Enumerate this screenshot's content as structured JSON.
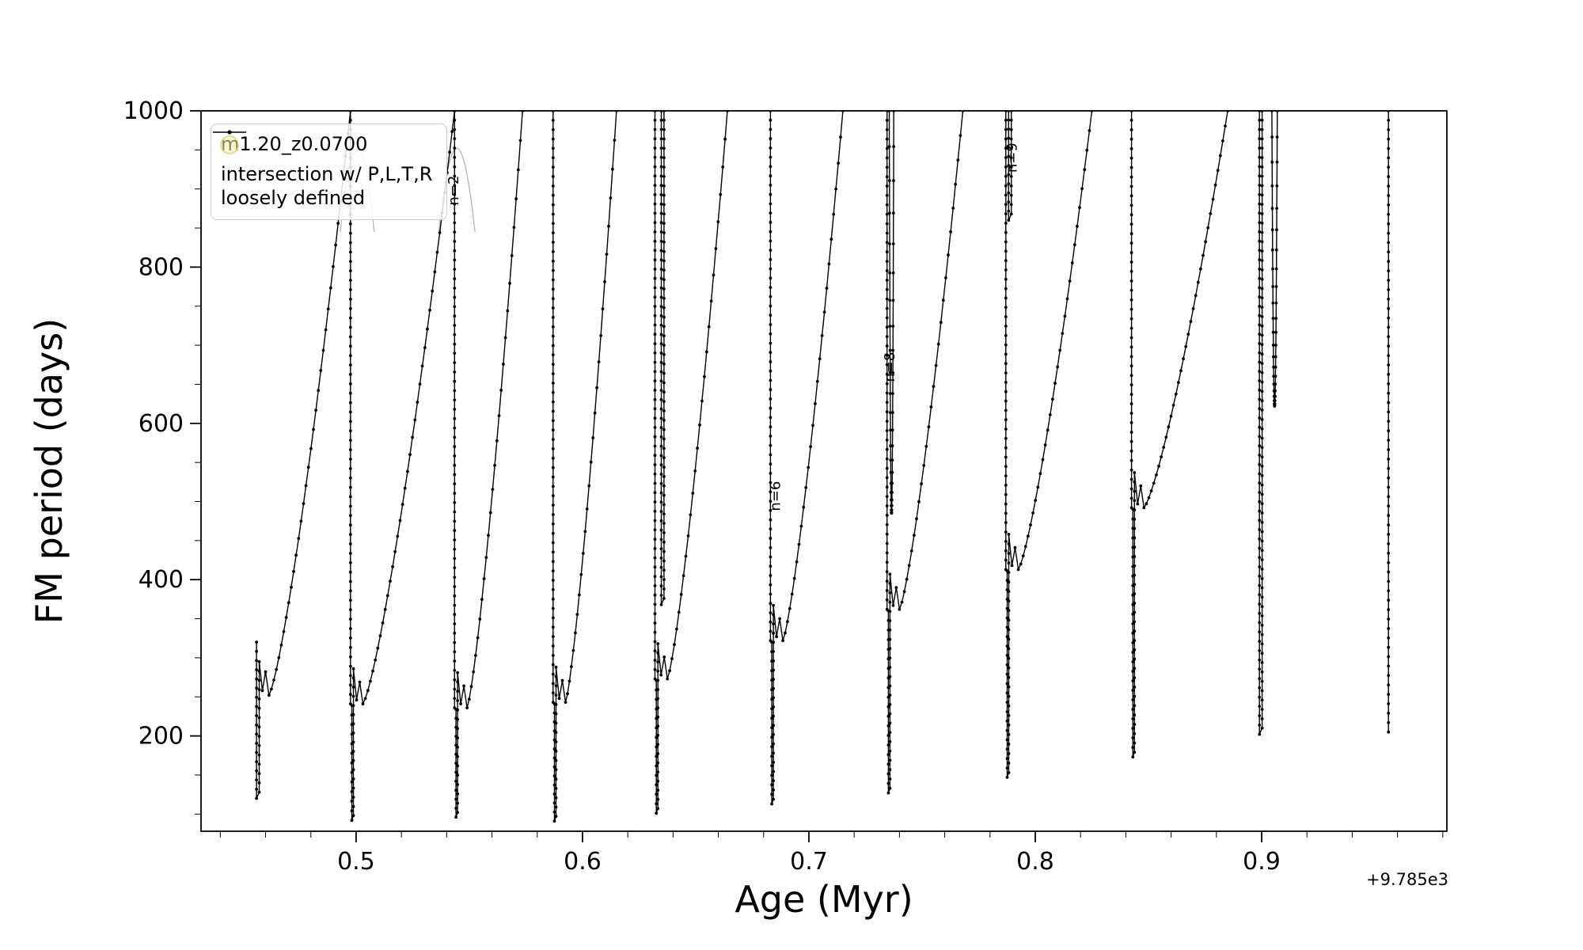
{
  "figure": {
    "background": "#ffffff"
  },
  "chart_data": {
    "type": "line",
    "title": "",
    "xlabel": "Age (Myr)",
    "ylabel": "FM period (days)",
    "x_offset_label": "+9.785e3",
    "xlim": [
      0.4315,
      0.9818
    ],
    "ylim": [
      78,
      1000
    ],
    "xticks": [
      0.5,
      0.6,
      0.7,
      0.8,
      0.9
    ],
    "xtick_labels": [
      "0.5",
      "0.6",
      "0.7",
      "0.8",
      "0.9"
    ],
    "xtick_minor_step": 0.02,
    "yticks": [
      200,
      400,
      600,
      800,
      1000
    ],
    "ytick_minor_step": 50,
    "grid": false,
    "legend": {
      "position": "upper-left",
      "entries": [
        {
          "label": "m1.20_z0.0700",
          "marker": "line-dot",
          "color": "#000000"
        },
        {
          "label_line1": "intersection w/ P,L,T,R",
          "label_line2": "loosely defined",
          "marker": "circle",
          "color": "#f9f3a6",
          "edge_color": "#d9d28e"
        }
      ]
    },
    "series": [
      {
        "name": "m1.20_z0.0700",
        "color": "#000000",
        "marker": "dot",
        "events": [
          {
            "kind": "cluster",
            "x": 0.456,
            "from": 320,
            "deep": 120,
            "bounce": 252,
            "ascend_to": 0.4975
          },
          {
            "kind": "bounce",
            "x": 0.4975,
            "deep": 92,
            "bounce": 241,
            "ascend_to": 0.5435
          },
          {
            "kind": "bounce",
            "x": 0.5435,
            "deep": 96,
            "bounce": 236,
            "ascend_to": 0.5735
          },
          {
            "kind": "bounce",
            "x": 0.587,
            "deep": 91,
            "bounce": 243,
            "ascend_to": 0.615
          },
          {
            "kind": "bounce",
            "x": 0.632,
            "deep": 101,
            "bounce": 273,
            "ascend_to": 0.664
          },
          {
            "kind": "spike_return",
            "x": 0.6348,
            "deep": 368
          },
          {
            "kind": "bounce",
            "x": 0.683,
            "deep": 113,
            "bounce": 322,
            "ascend_to": 0.715
          },
          {
            "kind": "bounce",
            "x": 0.7345,
            "deep": 127,
            "bounce": 362,
            "ascend_to": 0.768
          },
          {
            "kind": "vee",
            "x": 0.7355,
            "deep": 485,
            "half_width": 0.001
          },
          {
            "kind": "bounce",
            "x": 0.787,
            "deep": 147,
            "bounce": 413,
            "ascend_to": 0.825
          },
          {
            "kind": "spike_return",
            "x": 0.7882,
            "deep": 860
          },
          {
            "kind": "bounce",
            "x": 0.8425,
            "deep": 173,
            "bounce": 492,
            "ascend_to": 0.885
          },
          {
            "kind": "spike_return",
            "x": 0.899,
            "deep": 202
          },
          {
            "kind": "vee",
            "x": 0.9045,
            "deep": 622,
            "half_width": 0.0012
          },
          {
            "kind": "terminal",
            "x": 0.956,
            "deep": 205
          }
        ]
      }
    ],
    "ghost_series": {
      "color": "#b9b9b9",
      "arcs": [
        {
          "cx": 0.5005,
          "half_width": 0.0075,
          "y_top": 953,
          "y_base": 845
        },
        {
          "cx": 0.5445,
          "half_width": 0.008,
          "y_top": 952,
          "y_base": 845
        }
      ]
    },
    "annotations": [
      {
        "text": "n=2",
        "x": 0.5452,
        "y": 898,
        "color": "#9a9a9a",
        "rotation": -90
      },
      {
        "text": "n=6",
        "x": 0.6872,
        "y": 507,
        "color": "#1a1a1a",
        "rotation": -90
      },
      {
        "text": "n=8",
        "x": 0.7378,
        "y": 672,
        "color": "#1a1a1a",
        "rotation": -90
      },
      {
        "text": "n=9",
        "x": 0.7918,
        "y": 940,
        "color": "#1a1a1a",
        "rotation": -90
      }
    ]
  }
}
